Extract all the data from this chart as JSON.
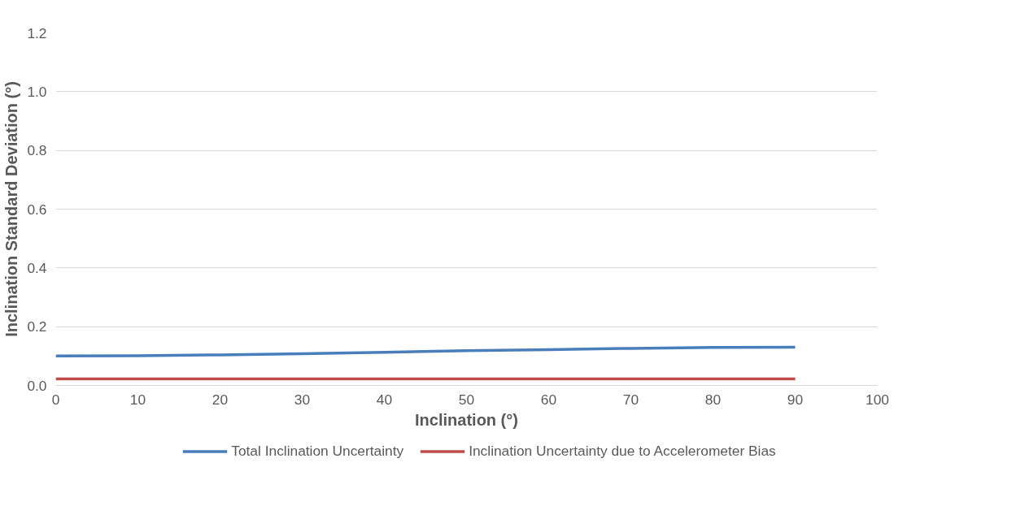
{
  "chart_data": {
    "type": "line",
    "xlabel": "Inclination (°)",
    "ylabel": "Inclination Standard Deviation (°)",
    "x": [
      0,
      10,
      20,
      30,
      40,
      50,
      60,
      70,
      80,
      90
    ],
    "series": [
      {
        "name": "Total Inclination Uncertainty",
        "color": "#4a7ebb",
        "values": [
          0.1,
          0.101,
          0.104,
          0.108,
          0.113,
          0.118,
          0.122,
          0.126,
          0.129,
          0.13
        ]
      },
      {
        "name": "Inclination Uncertainty due to Accelerometer Bias",
        "color": "#be4b48",
        "values": [
          0.022,
          0.022,
          0.022,
          0.022,
          0.022,
          0.022,
          0.022,
          0.022,
          0.022,
          0.022
        ]
      }
    ],
    "xlim": [
      0,
      100
    ],
    "xticks": [
      0,
      10,
      20,
      30,
      40,
      50,
      60,
      70,
      80,
      90,
      100
    ],
    "ylim": [
      0,
      1.2
    ],
    "yticks": [
      {
        "value": 0,
        "label": "0.0"
      },
      {
        "value": 0.2,
        "label": "0.2"
      },
      {
        "value": 0.4,
        "label": "0.4"
      },
      {
        "value": 0.6,
        "label": "0.6"
      },
      {
        "value": 0.8,
        "label": "0.8"
      },
      {
        "value": 1.0,
        "label": "1.0"
      },
      {
        "value": 1.2,
        "label": "1.2"
      }
    ],
    "grid": "y",
    "legend": "bottom",
    "marker": "none",
    "line_style": "solid"
  }
}
